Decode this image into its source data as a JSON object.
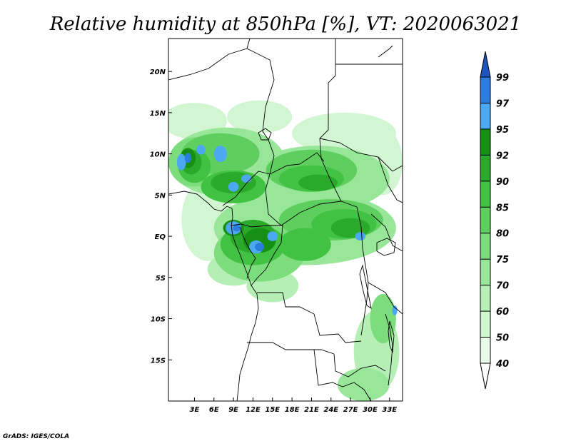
{
  "title": "Relative humidity at 850hPa [%], VT: 2020063021",
  "credit": "GrADS: IGES/COLA",
  "map": {
    "lon_range": [
      -1,
      35
    ],
    "lat_range": [
      -20,
      24
    ],
    "x_ticks": [
      {
        "lon": 3,
        "label": "3E"
      },
      {
        "lon": 6,
        "label": "6E"
      },
      {
        "lon": 9,
        "label": "9E"
      },
      {
        "lon": 12,
        "label": "12E"
      },
      {
        "lon": 15,
        "label": "15E"
      },
      {
        "lon": 18,
        "label": "18E"
      },
      {
        "lon": 21,
        "label": "21E"
      },
      {
        "lon": 24,
        "label": "24E"
      },
      {
        "lon": 27,
        "label": "27E"
      },
      {
        "lon": 30,
        "label": "30E"
      },
      {
        "lon": 33,
        "label": "33E"
      }
    ],
    "y_ticks": [
      {
        "lat": 20,
        "label": "20N"
      },
      {
        "lat": 15,
        "label": "15N"
      },
      {
        "lat": 10,
        "label": "10N"
      },
      {
        "lat": 5,
        "label": "5N"
      },
      {
        "lat": 0,
        "label": "EQ"
      },
      {
        "lat": -5,
        "label": "5S"
      },
      {
        "lat": -10,
        "label": "10S"
      },
      {
        "lat": -15,
        "label": "15S"
      }
    ]
  },
  "colorbar": {
    "levels": [
      {
        "label": "40",
        "color": "#e9fbe9"
      },
      {
        "label": "50",
        "color": "#d2f6d2"
      },
      {
        "label": "60",
        "color": "#b6efb6"
      },
      {
        "label": "70",
        "color": "#98e698"
      },
      {
        "label": "75",
        "color": "#7ddd7d"
      },
      {
        "label": "80",
        "color": "#5ecf5e"
      },
      {
        "label": "85",
        "color": "#42c242"
      },
      {
        "label": "90",
        "color": "#2ba92b"
      },
      {
        "label": "92",
        "color": "#159015"
      },
      {
        "label": "95",
        "color": "#4da8f2"
      },
      {
        "label": "97",
        "color": "#2b7de0"
      },
      {
        "label": "99",
        "color": "#1a55c0"
      }
    ],
    "under_color": "#ffffff",
    "over_color": "#1a55c0"
  },
  "fields": [
    {
      "lon": 3,
      "lat": 14,
      "rx": 5,
      "ry": 2.2,
      "level": 1
    },
    {
      "lon": 13,
      "lat": 14.5,
      "rx": 5,
      "ry": 2,
      "level": 1
    },
    {
      "lon": 26,
      "lat": 12.5,
      "rx": 8,
      "ry": 2.5,
      "level": 1
    },
    {
      "lon": 32,
      "lat": 9,
      "rx": 3,
      "ry": 4,
      "level": 1
    },
    {
      "lon": 5,
      "lat": 2,
      "rx": 4,
      "ry": 5,
      "level": 1
    },
    {
      "lon": 9,
      "lat": -4,
      "rx": 4,
      "ry": 2,
      "level": 2
    },
    {
      "lon": 15,
      "lat": -6,
      "rx": 4,
      "ry": 2,
      "level": 2
    },
    {
      "lon": 31,
      "lat": -14,
      "rx": 3.5,
      "ry": 5,
      "level": 2
    },
    {
      "lon": 29,
      "lat": -18,
      "rx": 4,
      "ry": 2,
      "level": 3
    },
    {
      "lon": 8,
      "lat": 9,
      "rx": 9,
      "ry": 4.2,
      "level": 3
    },
    {
      "lon": 22,
      "lat": 7,
      "rx": 11,
      "ry": 4,
      "level": 3
    },
    {
      "lon": 20,
      "lat": 1,
      "rx": 14,
      "ry": 4.5,
      "level": 3
    },
    {
      "lon": 13,
      "lat": -2,
      "rx": 7,
      "ry": 3.5,
      "level": 4
    },
    {
      "lon": 3,
      "lat": 9,
      "rx": 4,
      "ry": 3,
      "level": 4
    },
    {
      "lon": 32,
      "lat": -10,
      "rx": 2,
      "ry": 3,
      "level": 4
    },
    {
      "lon": 7,
      "lat": 10,
      "rx": 6,
      "ry": 2.5,
      "level": 5
    },
    {
      "lon": 21,
      "lat": 8,
      "rx": 7,
      "ry": 2.5,
      "level": 5
    },
    {
      "lon": 24,
      "lat": 2,
      "rx": 8,
      "ry": 2.5,
      "level": 5
    },
    {
      "lon": 12,
      "lat": -1,
      "rx": 5,
      "ry": 2.5,
      "level": 6
    },
    {
      "lon": 3,
      "lat": 8.5,
      "rx": 2.5,
      "ry": 2,
      "level": 6
    },
    {
      "lon": 9,
      "lat": 6,
      "rx": 5,
      "ry": 2,
      "level": 6
    },
    {
      "lon": 21,
      "lat": 7,
      "rx": 5,
      "ry": 1.6,
      "level": 6
    },
    {
      "lon": 26,
      "lat": 1.5,
      "rx": 5,
      "ry": 1.8,
      "level": 6
    },
    {
      "lon": 20,
      "lat": -1,
      "rx": 4,
      "ry": 2,
      "level": 6
    },
    {
      "lon": 12,
      "lat": 0,
      "rx": 3.5,
      "ry": 2,
      "level": 7
    },
    {
      "lon": 9,
      "lat": 6.5,
      "rx": 3.5,
      "ry": 1.3,
      "level": 7
    },
    {
      "lon": 2.5,
      "lat": 9,
      "rx": 1.6,
      "ry": 1.5,
      "level": 7
    },
    {
      "lon": 27,
      "lat": 1,
      "rx": 3,
      "ry": 1.2,
      "level": 7
    },
    {
      "lon": 22,
      "lat": 6.5,
      "rx": 3,
      "ry": 1,
      "level": 7
    },
    {
      "lon": 13,
      "lat": -0.5,
      "rx": 2.5,
      "ry": 1.5,
      "level": 8
    },
    {
      "lon": 9,
      "lat": 1,
      "rx": 1.6,
      "ry": 1,
      "level": 8
    },
    {
      "lon": 2,
      "lat": 9.5,
      "rx": 1.2,
      "ry": 1.2,
      "level": 8
    },
    {
      "lon": 9,
      "lat": 1,
      "rx": 1.2,
      "ry": 0.8,
      "level": 9
    },
    {
      "lon": 12.5,
      "lat": -1.3,
      "rx": 1.1,
      "ry": 0.8,
      "level": 9
    },
    {
      "lon": 15,
      "lat": 0,
      "rx": 0.8,
      "ry": 0.6,
      "level": 9
    },
    {
      "lon": 7,
      "lat": 10,
      "rx": 1,
      "ry": 1,
      "level": 9
    },
    {
      "lon": 9,
      "lat": 6,
      "rx": 0.8,
      "ry": 0.6,
      "level": 9
    },
    {
      "lon": 11,
      "lat": 7,
      "rx": 0.8,
      "ry": 0.5,
      "level": 9
    },
    {
      "lon": 1,
      "lat": 9,
      "rx": 0.7,
      "ry": 1,
      "level": 9
    },
    {
      "lon": 4,
      "lat": 10.5,
      "rx": 0.7,
      "ry": 0.6,
      "level": 9
    },
    {
      "lon": 28.5,
      "lat": 0,
      "rx": 0.8,
      "ry": 0.5,
      "level": 9
    },
    {
      "lon": 33.8,
      "lat": -9,
      "rx": 0.4,
      "ry": 0.6,
      "level": 9
    },
    {
      "lon": 13,
      "lat": -1.3,
      "rx": 0.7,
      "ry": 0.5,
      "level": 10
    },
    {
      "lon": 9.5,
      "lat": 1,
      "rx": 0.6,
      "ry": 0.4,
      "level": 10
    },
    {
      "lon": 2,
      "lat": 9.5,
      "rx": 0.5,
      "ry": 0.6,
      "level": 10
    }
  ]
}
